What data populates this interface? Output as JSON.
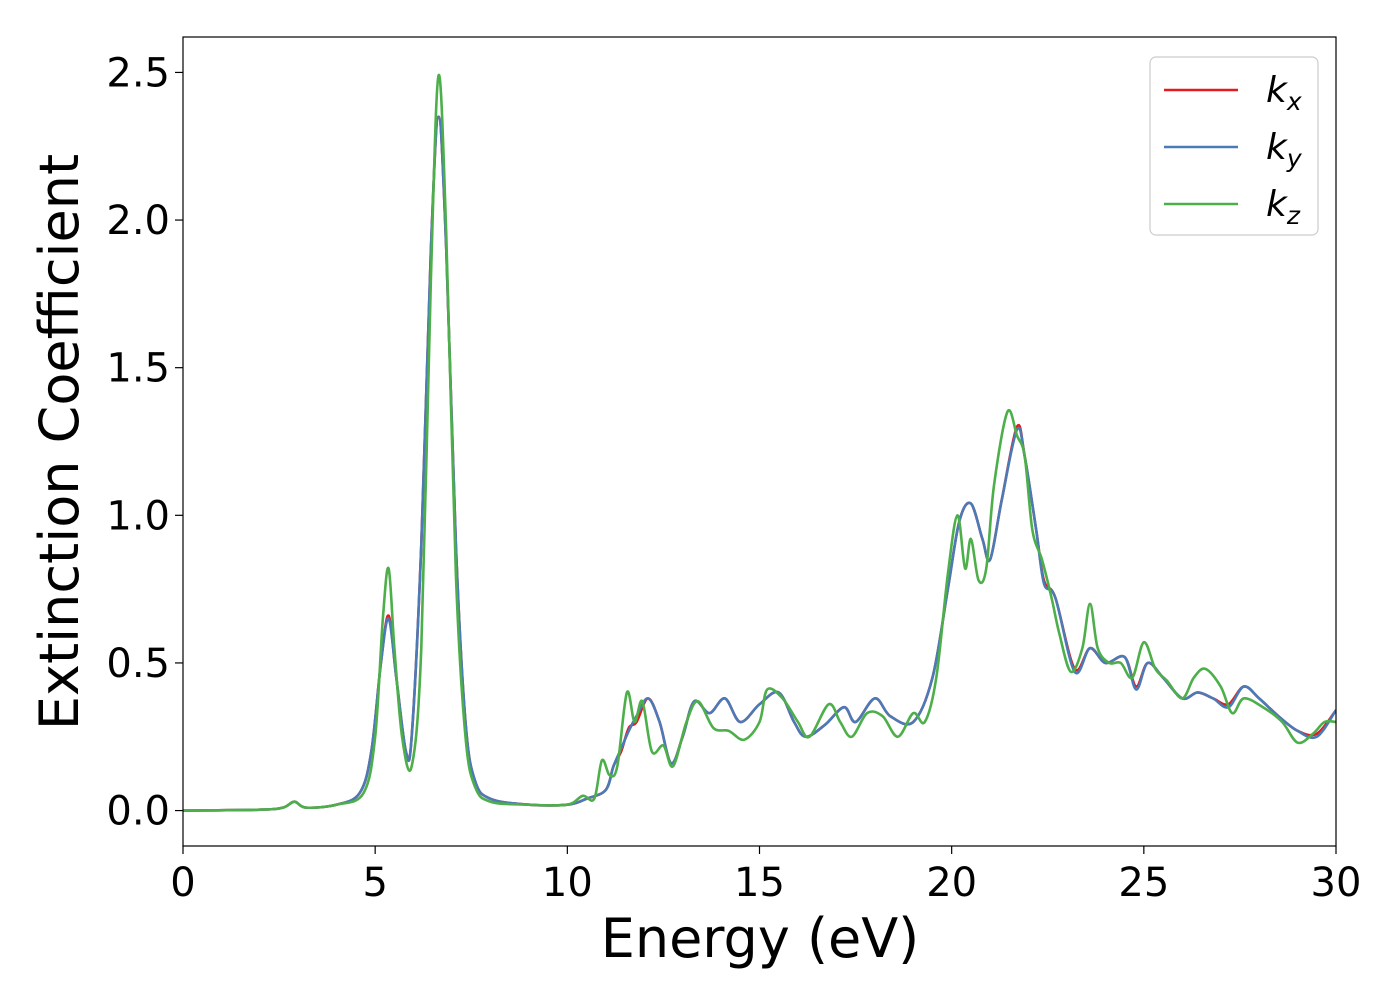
{
  "chart_data": {
    "type": "line",
    "title": "",
    "xlabel": "Energy (eV)",
    "ylabel": "Extinction Coefficient",
    "xlim": [
      0,
      30
    ],
    "ylim": [
      -0.12,
      2.62
    ],
    "xticks": [
      0,
      5,
      10,
      15,
      20,
      25,
      30
    ],
    "xtick_labels": [
      "0",
      "5",
      "10",
      "15",
      "20",
      "25",
      "30"
    ],
    "yticks": [
      0.0,
      0.5,
      1.0,
      1.5,
      2.0,
      2.5
    ],
    "ytick_labels": [
      "0.0",
      "0.5",
      "1.0",
      "1.5",
      "2.0",
      "2.5"
    ],
    "grid": false,
    "legend_position": "top-right",
    "series": [
      {
        "name": "k_x",
        "legend_base": "k",
        "legend_sub": "x",
        "color": "#e41a1c",
        "points": [
          [
            0,
            0
          ],
          [
            2,
            0.003
          ],
          [
            2.6,
            0.01
          ],
          [
            2.9,
            0.03
          ],
          [
            3.2,
            0.01
          ],
          [
            4,
            0.02
          ],
          [
            4.6,
            0.06
          ],
          [
            4.9,
            0.2
          ],
          [
            5.15,
            0.5
          ],
          [
            5.35,
            0.66
          ],
          [
            5.55,
            0.45
          ],
          [
            5.8,
            0.2
          ],
          [
            5.95,
            0.25
          ],
          [
            6.2,
            0.9
          ],
          [
            6.45,
            1.9
          ],
          [
            6.65,
            2.35
          ],
          [
            6.85,
            1.9
          ],
          [
            7.1,
            0.9
          ],
          [
            7.35,
            0.3
          ],
          [
            7.6,
            0.1
          ],
          [
            8,
            0.04
          ],
          [
            9,
            0.02
          ],
          [
            10,
            0.02
          ],
          [
            10.5,
            0.04
          ],
          [
            11,
            0.07
          ],
          [
            11.2,
            0.15
          ],
          [
            11.4,
            0.2
          ],
          [
            11.6,
            0.28
          ],
          [
            11.8,
            0.3
          ],
          [
            12.1,
            0.38
          ],
          [
            12.4,
            0.3
          ],
          [
            12.7,
            0.16
          ],
          [
            13,
            0.25
          ],
          [
            13.3,
            0.37
          ],
          [
            13.7,
            0.33
          ],
          [
            14.1,
            0.38
          ],
          [
            14.5,
            0.3
          ],
          [
            15,
            0.36
          ],
          [
            15.5,
            0.4
          ],
          [
            15.9,
            0.3
          ],
          [
            16.2,
            0.25
          ],
          [
            16.7,
            0.29
          ],
          [
            17.2,
            0.35
          ],
          [
            17.5,
            0.3
          ],
          [
            18,
            0.38
          ],
          [
            18.4,
            0.32
          ],
          [
            19,
            0.3
          ],
          [
            19.5,
            0.45
          ],
          [
            19.9,
            0.75
          ],
          [
            20.2,
            0.98
          ],
          [
            20.5,
            1.04
          ],
          [
            20.8,
            0.92
          ],
          [
            21,
            0.85
          ],
          [
            21.3,
            1.05
          ],
          [
            21.7,
            1.3
          ],
          [
            21.9,
            1.2
          ],
          [
            22.2,
            0.95
          ],
          [
            22.4,
            0.78
          ],
          [
            22.7,
            0.72
          ],
          [
            23.2,
            0.48
          ],
          [
            23.6,
            0.55
          ],
          [
            24,
            0.5
          ],
          [
            24.5,
            0.52
          ],
          [
            24.8,
            0.42
          ],
          [
            25.1,
            0.5
          ],
          [
            25.5,
            0.45
          ],
          [
            26,
            0.38
          ],
          [
            26.4,
            0.4
          ],
          [
            26.8,
            0.38
          ],
          [
            27.2,
            0.36
          ],
          [
            27.6,
            0.42
          ],
          [
            28,
            0.38
          ],
          [
            28.5,
            0.32
          ],
          [
            29,
            0.27
          ],
          [
            29.5,
            0.26
          ],
          [
            30,
            0.34
          ]
        ]
      },
      {
        "name": "k_y",
        "legend_base": "k",
        "legend_sub": "y",
        "color": "#4a7bb7",
        "points": [
          [
            0,
            0
          ],
          [
            2,
            0.003
          ],
          [
            2.6,
            0.01
          ],
          [
            2.9,
            0.03
          ],
          [
            3.2,
            0.01
          ],
          [
            4,
            0.02
          ],
          [
            4.6,
            0.06
          ],
          [
            4.9,
            0.2
          ],
          [
            5.15,
            0.5
          ],
          [
            5.35,
            0.65
          ],
          [
            5.55,
            0.45
          ],
          [
            5.8,
            0.2
          ],
          [
            5.95,
            0.25
          ],
          [
            6.2,
            0.9
          ],
          [
            6.45,
            1.9
          ],
          [
            6.65,
            2.35
          ],
          [
            6.85,
            1.9
          ],
          [
            7.1,
            0.9
          ],
          [
            7.35,
            0.3
          ],
          [
            7.6,
            0.1
          ],
          [
            8,
            0.04
          ],
          [
            9,
            0.02
          ],
          [
            10,
            0.02
          ],
          [
            10.5,
            0.04
          ],
          [
            11,
            0.07
          ],
          [
            11.2,
            0.15
          ],
          [
            11.4,
            0.21
          ],
          [
            11.6,
            0.27
          ],
          [
            11.8,
            0.32
          ],
          [
            12.1,
            0.38
          ],
          [
            12.4,
            0.3
          ],
          [
            12.7,
            0.16
          ],
          [
            13,
            0.25
          ],
          [
            13.3,
            0.37
          ],
          [
            13.7,
            0.33
          ],
          [
            14.1,
            0.38
          ],
          [
            14.5,
            0.3
          ],
          [
            15,
            0.36
          ],
          [
            15.5,
            0.4
          ],
          [
            15.9,
            0.3
          ],
          [
            16.2,
            0.25
          ],
          [
            16.7,
            0.29
          ],
          [
            17.2,
            0.35
          ],
          [
            17.5,
            0.3
          ],
          [
            18,
            0.38
          ],
          [
            18.4,
            0.32
          ],
          [
            19,
            0.3
          ],
          [
            19.5,
            0.45
          ],
          [
            19.9,
            0.75
          ],
          [
            20.2,
            0.98
          ],
          [
            20.5,
            1.04
          ],
          [
            20.8,
            0.92
          ],
          [
            21,
            0.85
          ],
          [
            21.3,
            1.05
          ],
          [
            21.7,
            1.29
          ],
          [
            21.9,
            1.2
          ],
          [
            22.2,
            0.95
          ],
          [
            22.4,
            0.77
          ],
          [
            22.7,
            0.72
          ],
          [
            23.2,
            0.47
          ],
          [
            23.6,
            0.55
          ],
          [
            24,
            0.5
          ],
          [
            24.5,
            0.52
          ],
          [
            24.8,
            0.41
          ],
          [
            25.1,
            0.5
          ],
          [
            25.5,
            0.45
          ],
          [
            26,
            0.38
          ],
          [
            26.4,
            0.4
          ],
          [
            26.8,
            0.38
          ],
          [
            27.2,
            0.35
          ],
          [
            27.6,
            0.42
          ],
          [
            28,
            0.38
          ],
          [
            28.5,
            0.32
          ],
          [
            29,
            0.27
          ],
          [
            29.5,
            0.25
          ],
          [
            30,
            0.34
          ]
        ]
      },
      {
        "name": "k_z",
        "legend_base": "k",
        "legend_sub": "z",
        "color": "#4daf4a",
        "points": [
          [
            0,
            0
          ],
          [
            2,
            0.003
          ],
          [
            2.6,
            0.01
          ],
          [
            2.9,
            0.03
          ],
          [
            3.2,
            0.01
          ],
          [
            4,
            0.02
          ],
          [
            4.7,
            0.06
          ],
          [
            5.0,
            0.25
          ],
          [
            5.2,
            0.65
          ],
          [
            5.35,
            0.82
          ],
          [
            5.5,
            0.55
          ],
          [
            5.7,
            0.25
          ],
          [
            5.95,
            0.15
          ],
          [
            6.2,
            0.55
          ],
          [
            6.45,
            1.8
          ],
          [
            6.65,
            2.49
          ],
          [
            6.85,
            1.95
          ],
          [
            7.1,
            0.8
          ],
          [
            7.35,
            0.25
          ],
          [
            7.6,
            0.08
          ],
          [
            8,
            0.03
          ],
          [
            9,
            0.02
          ],
          [
            10,
            0.02
          ],
          [
            10.4,
            0.05
          ],
          [
            10.7,
            0.04
          ],
          [
            10.9,
            0.17
          ],
          [
            11.1,
            0.12
          ],
          [
            11.3,
            0.15
          ],
          [
            11.55,
            0.4
          ],
          [
            11.75,
            0.3
          ],
          [
            11.95,
            0.37
          ],
          [
            12.2,
            0.2
          ],
          [
            12.5,
            0.22
          ],
          [
            12.75,
            0.15
          ],
          [
            13.1,
            0.3
          ],
          [
            13.4,
            0.37
          ],
          [
            13.8,
            0.28
          ],
          [
            14.2,
            0.27
          ],
          [
            14.6,
            0.24
          ],
          [
            15,
            0.3
          ],
          [
            15.2,
            0.41
          ],
          [
            15.6,
            0.38
          ],
          [
            16,
            0.3
          ],
          [
            16.3,
            0.25
          ],
          [
            16.8,
            0.36
          ],
          [
            17.1,
            0.3
          ],
          [
            17.4,
            0.25
          ],
          [
            17.8,
            0.33
          ],
          [
            18.2,
            0.32
          ],
          [
            18.6,
            0.25
          ],
          [
            19,
            0.33
          ],
          [
            19.3,
            0.3
          ],
          [
            19.6,
            0.45
          ],
          [
            19.9,
            0.8
          ],
          [
            20.15,
            1.0
          ],
          [
            20.35,
            0.82
          ],
          [
            20.5,
            0.92
          ],
          [
            20.7,
            0.78
          ],
          [
            20.9,
            0.82
          ],
          [
            21.1,
            1.1
          ],
          [
            21.45,
            1.35
          ],
          [
            21.7,
            1.27
          ],
          [
            21.9,
            1.2
          ],
          [
            22.1,
            0.95
          ],
          [
            22.35,
            0.85
          ],
          [
            22.6,
            0.72
          ],
          [
            22.8,
            0.6
          ],
          [
            23.1,
            0.47
          ],
          [
            23.4,
            0.55
          ],
          [
            23.6,
            0.7
          ],
          [
            23.8,
            0.55
          ],
          [
            24.1,
            0.5
          ],
          [
            24.4,
            0.5
          ],
          [
            24.7,
            0.45
          ],
          [
            25,
            0.57
          ],
          [
            25.3,
            0.48
          ],
          [
            25.6,
            0.44
          ],
          [
            26,
            0.38
          ],
          [
            26.3,
            0.45
          ],
          [
            26.6,
            0.48
          ],
          [
            27,
            0.42
          ],
          [
            27.3,
            0.33
          ],
          [
            27.6,
            0.38
          ],
          [
            28.1,
            0.35
          ],
          [
            28.6,
            0.3
          ],
          [
            29,
            0.23
          ],
          [
            29.4,
            0.26
          ],
          [
            29.7,
            0.3
          ],
          [
            30,
            0.3
          ]
        ]
      }
    ]
  }
}
